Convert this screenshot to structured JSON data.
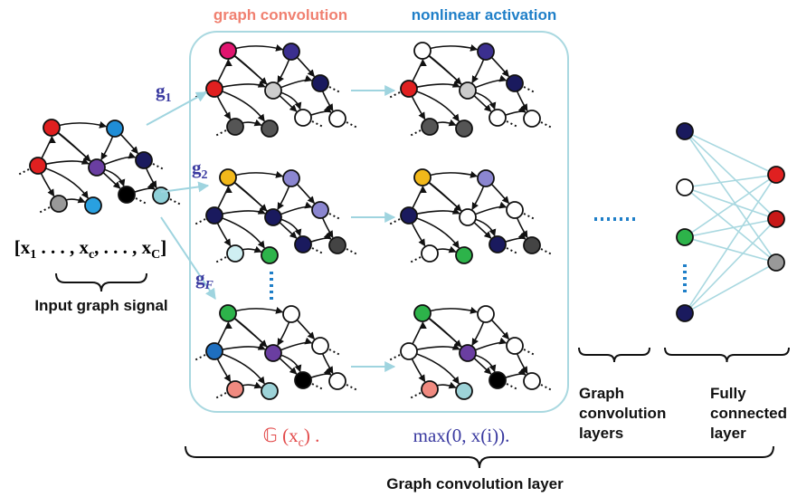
{
  "column_titles": {
    "convolution": "graph convolution",
    "activation": "nonlinear activation"
  },
  "filters": [
    {
      "symbol": "g",
      "subscript": "1"
    },
    {
      "symbol": "g",
      "subscript": "2"
    },
    {
      "symbol": "g",
      "subscript": "F"
    }
  ],
  "input_signal": {
    "open": "[x",
    "first": "1",
    "mid": " . . . , x",
    "c": "c",
    "rest": ", . . . , x",
    "last": "C",
    "close": "]"
  },
  "formulas": {
    "convolution": {
      "before": "𝔾 (x",
      "sub": "c",
      "after": ") ."
    },
    "activation": "max(0, x(i))."
  },
  "labels": {
    "input": "Input graph signal",
    "layer": "Graph convolution layer",
    "layers": [
      "Graph",
      "convolution",
      "layers"
    ],
    "fully_connected": [
      "Fully",
      "connected",
      "layer"
    ]
  }
}
